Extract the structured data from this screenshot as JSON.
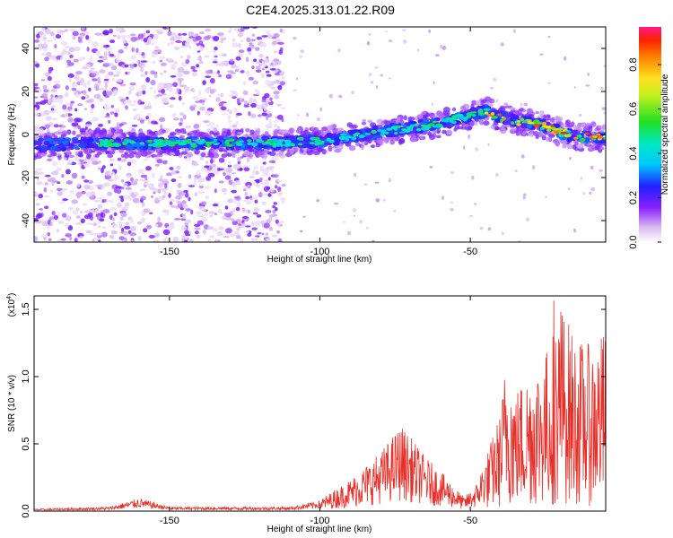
{
  "title": "C2E4.2025.313.01.22.R09",
  "chart_data": [
    {
      "type": "heatmap",
      "name": "spectrogram",
      "xlabel": "Height of straight line (km)",
      "ylabel": "Frequency (Hz)",
      "xlim": [
        -195,
        -5
      ],
      "ylim": [
        -50,
        50
      ],
      "xticks": [
        -150,
        -100,
        -50
      ],
      "yticks": [
        -40,
        -20,
        0,
        20,
        40
      ],
      "noise_band_x": [
        -195,
        -112
      ],
      "ridge": {
        "x": [
          -195,
          -170,
          -150,
          -130,
          -115,
          -100,
          -85,
          -70,
          -60,
          -55,
          -50,
          -45,
          -40,
          -35,
          -30,
          -25,
          -20,
          -15,
          -10,
          -5
        ],
        "y": [
          -5,
          -4,
          -4,
          -4,
          -4,
          -3,
          0,
          3,
          5,
          7,
          9,
          11,
          8,
          6,
          5,
          4,
          1,
          -1,
          -1,
          -2
        ]
      },
      "colorbar": {
        "label": "Normalized spectral amplitude",
        "ticks": [
          "0.0",
          "0.2",
          "0.4",
          "0.6",
          "0.8"
        ],
        "range": [
          0,
          0.97
        ]
      }
    },
    {
      "type": "line",
      "name": "snr",
      "xlabel": "Height of straight line (km)",
      "ylabel": "SNR (10 * v/v)",
      "scale_label": "(x10",
      "scale_exp": "4",
      "xlim": [
        -195,
        -5
      ],
      "ylim": [
        0,
        1.6
      ],
      "xticks": [
        -150,
        -100,
        -50
      ],
      "yticks": [
        "0.0",
        "0.5",
        "1.0",
        "1.5"
      ],
      "color": "#e8302a",
      "envelope": {
        "x": [
          -195,
          -170,
          -160,
          -150,
          -130,
          -110,
          -100,
          -90,
          -80,
          -73,
          -65,
          -58,
          -52,
          -48,
          -45,
          -40,
          -38,
          -35,
          -30,
          -25,
          -20,
          -15,
          -10,
          -5
        ],
        "y": [
          0.01,
          0.02,
          0.06,
          0.02,
          0.02,
          0.02,
          0.05,
          0.14,
          0.26,
          0.38,
          0.24,
          0.15,
          0.06,
          0.12,
          0.24,
          0.45,
          0.72,
          0.55,
          0.65,
          0.72,
          0.95,
          0.78,
          0.75,
          0.82
        ]
      }
    }
  ]
}
